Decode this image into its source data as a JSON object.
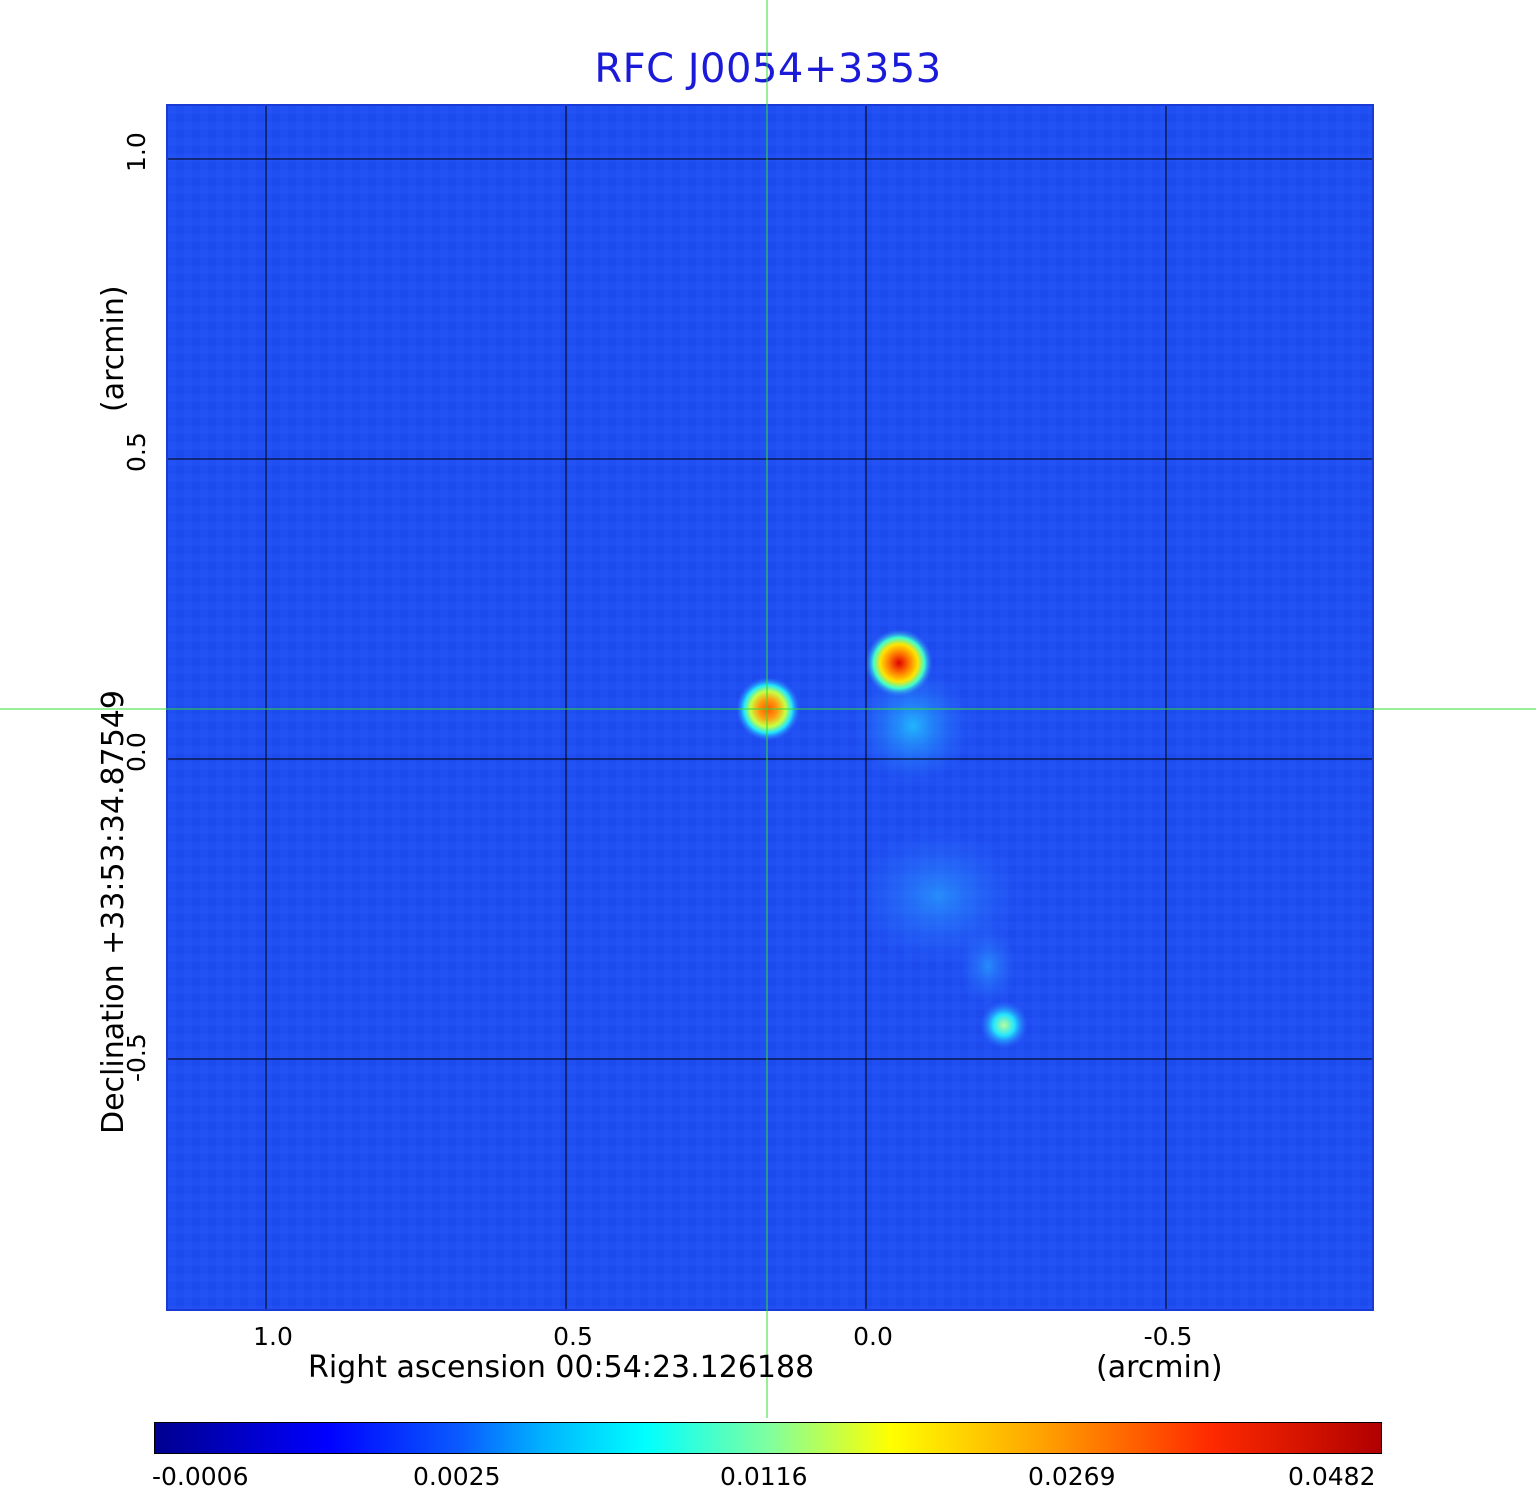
{
  "title": "RFC J0054+3353",
  "x_axis": {
    "label": "Right ascension  00:54:23.126188",
    "unit": "(arcmin)",
    "ticks": [
      "1.0",
      "0.5",
      "0.0",
      "-0.5"
    ]
  },
  "y_axis": {
    "label": "Declination  +33:53:34.87549",
    "unit": "(arcmin)",
    "ticks": [
      "1.0",
      "0.5",
      "0.0",
      "-0.5"
    ]
  },
  "colorbar": {
    "ticks": [
      "-0.0006",
      "0.0025",
      "0.0116",
      "0.0269",
      "0.0482"
    ],
    "colormap": "jet"
  },
  "colors": {
    "title": "#1a1ad8",
    "background_map": "#1f4ef2",
    "crosshair": "#33dd33",
    "grid": "#000000"
  }
}
